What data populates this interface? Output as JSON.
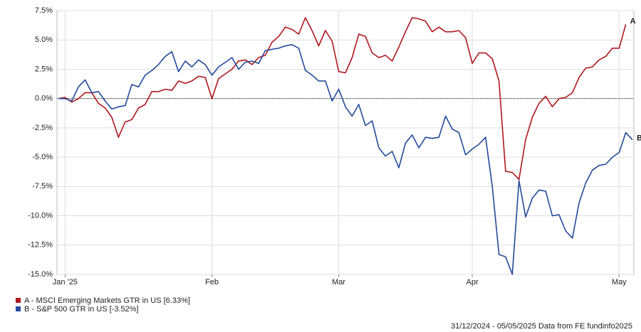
{
  "chart_data": {
    "type": "line",
    "categories": [
      null,
      "Jan '25",
      null,
      null,
      null,
      null,
      null,
      null,
      null,
      null,
      null,
      null,
      null,
      null,
      null,
      null,
      null,
      null,
      null,
      null,
      null,
      null,
      null,
      "Feb",
      null,
      null,
      null,
      null,
      null,
      null,
      null,
      null,
      null,
      null,
      null,
      null,
      null,
      null,
      null,
      null,
      null,
      null,
      "Mar",
      null,
      null,
      null,
      null,
      null,
      null,
      null,
      null,
      null,
      null,
      null,
      null,
      null,
      null,
      null,
      null,
      null,
      null,
      null,
      "Apr",
      null,
      null,
      null,
      null,
      null,
      null,
      null,
      null,
      null,
      null,
      null,
      null,
      null,
      null,
      null,
      null,
      null,
      null,
      null,
      null,
      null,
      "May",
      null,
      null
    ],
    "series": [
      {
        "name": "A - MSCI Emerging Markets GTR in US [6.33%]",
        "end_label": "A",
        "color": "#b0171e",
        "values": [
          0.0,
          0.1,
          -0.3,
          0.0,
          0.5,
          0.5,
          -0.4,
          -0.8,
          -1.6,
          -3.3,
          -2.0,
          -1.8,
          -0.8,
          -0.5,
          0.6,
          0.6,
          0.8,
          0.7,
          1.5,
          1.3,
          1.5,
          1.9,
          1.8,
          0.0,
          1.7,
          2.1,
          2.5,
          3.2,
          3.3,
          2.9,
          3.5,
          3.7,
          4.8,
          5.3,
          6.1,
          5.9,
          5.5,
          6.9,
          5.8,
          4.5,
          5.8,
          4.9,
          2.3,
          2.2,
          3.5,
          5.5,
          5.3,
          3.9,
          3.5,
          3.7,
          3.2,
          4.4,
          5.7,
          6.9,
          6.8,
          6.6,
          5.7,
          6.1,
          5.7,
          5.7,
          5.8,
          5.2,
          3.0,
          3.9,
          3.9,
          3.4,
          1.5,
          -6.2,
          -6.3,
          -6.9,
          -3.5,
          -1.6,
          -0.4,
          0.2,
          -0.7,
          0.0,
          0.1,
          0.5,
          1.8,
          2.6,
          2.7,
          3.3,
          3.6,
          4.3,
          4.3,
          6.33,
          null
        ]
      },
      {
        "name": "B - S&P 500 GTR in US [-3.52%]",
        "end_label": "B",
        "color": "#234a9c",
        "values": [
          0.0,
          0.0,
          -0.2,
          1.0,
          1.6,
          0.5,
          0.6,
          -0.2,
          -0.9,
          -0.7,
          -0.6,
          1.2,
          1.0,
          2.0,
          2.4,
          2.9,
          3.6,
          4.0,
          2.3,
          3.2,
          2.7,
          3.3,
          2.9,
          2.0,
          2.7,
          3.1,
          3.5,
          2.5,
          3.1,
          3.2,
          3.0,
          4.1,
          4.2,
          4.3,
          4.5,
          4.6,
          4.3,
          2.4,
          2.0,
          1.5,
          1.5,
          -0.2,
          0.8,
          -0.7,
          -1.5,
          -0.5,
          -2.3,
          -1.9,
          -4.2,
          -4.9,
          -4.5,
          -5.9,
          -3.8,
          -3.1,
          -4.2,
          -3.3,
          -3.4,
          -3.3,
          -1.5,
          -2.6,
          -2.9,
          -4.8,
          -4.3,
          -3.9,
          -3.3,
          -7.5,
          -13.3,
          -13.5,
          -15.0,
          -7.0,
          -10.1,
          -8.5,
          -7.8,
          -7.9,
          -10.0,
          -9.9,
          -11.3,
          -11.9,
          -8.9,
          -7.2,
          -6.1,
          -5.7,
          -5.6,
          -5.0,
          -4.6,
          -2.9,
          -3.52
        ]
      }
    ],
    "ylim": [
      -15,
      7.5
    ],
    "yticks": [
      {
        "value": -15,
        "label": "-15.0%"
      },
      {
        "value": -12.5,
        "label": "-12.5%"
      },
      {
        "value": -10,
        "label": "-10.0%"
      },
      {
        "value": -7.5,
        "label": "-7.5%"
      },
      {
        "value": -5,
        "label": "-5.0%"
      },
      {
        "value": -2.5,
        "label": "-2.5%"
      },
      {
        "value": 0,
        "label": "0.0%"
      },
      {
        "value": 2.5,
        "label": "2.5%"
      },
      {
        "value": 5,
        "label": "5.0%"
      },
      {
        "value": 7.5,
        "label": "7.5%"
      }
    ],
    "grid": true,
    "footer": "31/12/2024 - 05/05/2025 Data from FE fundinfo2025"
  }
}
